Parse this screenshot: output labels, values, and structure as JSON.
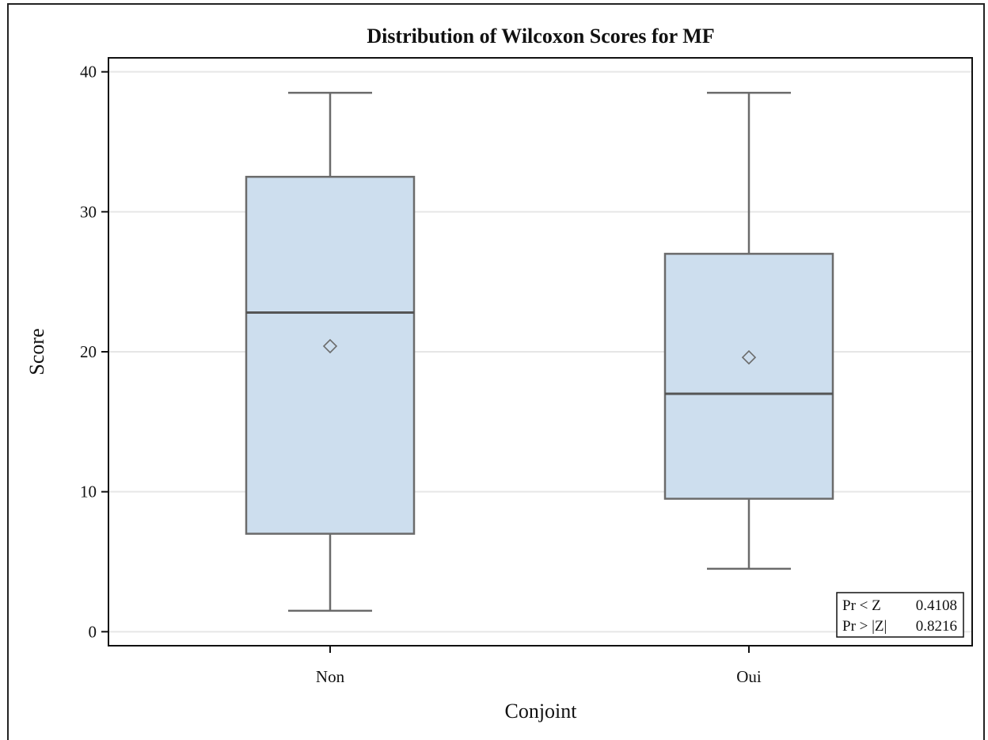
{
  "chart_data": {
    "type": "box",
    "title": "Distribution of Wilcoxon Scores for MF",
    "xlabel": "Conjoint",
    "ylabel": "Score",
    "ylim": [
      -1,
      41
    ],
    "yticks": [
      0,
      10,
      20,
      30,
      40
    ],
    "grid": true,
    "categories": [
      "Non",
      "Oui"
    ],
    "boxes": [
      {
        "category": "Non",
        "min": 1.5,
        "q1": 7.0,
        "median": 22.8,
        "q3": 32.5,
        "max": 38.5,
        "mean": 20.4
      },
      {
        "category": "Oui",
        "min": 4.5,
        "q1": 9.5,
        "median": 17.0,
        "q3": 27.0,
        "max": 38.5,
        "mean": 19.6
      }
    ],
    "stats_table": [
      {
        "label": "Pr < Z",
        "value": "0.4108"
      },
      {
        "label": "Pr > |Z|",
        "value": "0.8216"
      }
    ],
    "colors": {
      "box_fill": "#cddeee",
      "box_stroke": "#6b6b6b",
      "grid": "#e6e6e6",
      "axis": "#111111"
    }
  }
}
